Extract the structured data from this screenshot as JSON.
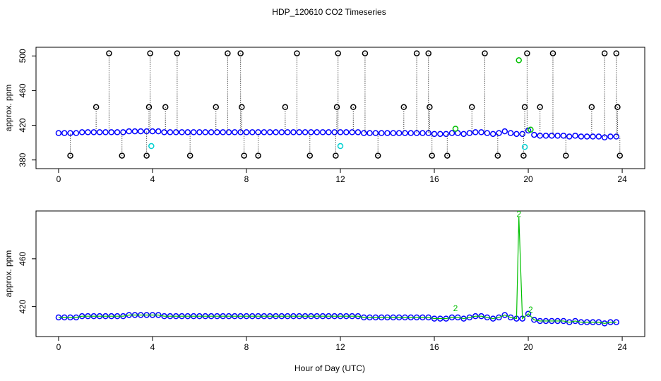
{
  "chart_data": [
    {
      "type": "scatter",
      "title": "HDP_120610  CO2 Timeseries",
      "y_label": "approx. ppm",
      "xlim": [
        -0.96,
        24.96
      ],
      "xticks": [
        0,
        4,
        8,
        12,
        16,
        20,
        24
      ],
      "ylim": [
        370,
        510
      ],
      "yticks": [
        380,
        420,
        460,
        500
      ],
      "series": [
        {
          "color": "#0000ff",
          "mode": "points",
          "x": [
            0,
            0.25,
            0.5,
            0.75,
            1,
            1.25,
            1.5,
            1.75,
            2,
            2.25,
            2.5,
            2.75,
            3,
            3.25,
            3.5,
            3.75,
            4,
            4.25,
            4.5,
            4.75,
            5,
            5.25,
            5.5,
            5.75,
            6,
            6.25,
            6.5,
            6.75,
            7,
            7.25,
            7.5,
            7.75,
            8,
            8.25,
            8.5,
            8.75,
            9,
            9.25,
            9.5,
            9.75,
            10,
            10.25,
            10.5,
            10.75,
            11,
            11.25,
            11.5,
            11.75,
            12,
            12.25,
            12.5,
            12.75,
            13,
            13.25,
            13.5,
            13.75,
            14,
            14.25,
            14.5,
            14.75,
            15,
            15.25,
            15.5,
            15.75,
            16,
            16.25,
            16.5,
            16.75,
            17,
            17.25,
            17.5,
            17.75,
            18,
            18.25,
            18.5,
            18.75,
            19,
            19.25,
            19.5,
            19.75,
            20,
            20.25,
            20.5,
            20.75,
            21,
            21.25,
            21.5,
            21.75,
            22,
            22.25,
            22.5,
            22.75,
            23,
            23.25,
            23.5,
            23.75
          ],
          "values": [
            411,
            411,
            411,
            411,
            412,
            412,
            412,
            412,
            412,
            412,
            412,
            412,
            413,
            413,
            413,
            413,
            413,
            413,
            412,
            412,
            412,
            412,
            412,
            412,
            412,
            412,
            412,
            412,
            412,
            412,
            412,
            412,
            412,
            412,
            412,
            412,
            412,
            412,
            412,
            412,
            412,
            412,
            412,
            412,
            412,
            412,
            412,
            412,
            412,
            412,
            412,
            412,
            411,
            411,
            411,
            411,
            411,
            411,
            411,
            411,
            411,
            411,
            411,
            411,
            410,
            410,
            410,
            411,
            411,
            410,
            411,
            412,
            412,
            411,
            410,
            411,
            413,
            411,
            410,
            410,
            414,
            409,
            408,
            408,
            408,
            408,
            408,
            407,
            408,
            407,
            407,
            407,
            407,
            406,
            407,
            407
          ]
        },
        {
          "color": "#000000",
          "mode": "points",
          "droplines": true,
          "x": [
            0.5,
            1.6,
            2.15,
            2.7,
            3.75,
            3.85,
            3.9,
            4.55,
            5.05,
            5.6,
            6.7,
            7.2,
            7.75,
            7.8,
            7.9,
            8.5,
            9.65,
            10.15,
            10.7,
            11.8,
            11.85,
            11.9,
            12.55,
            13.05,
            13.6,
            14.7,
            15.25,
            15.75,
            15.8,
            15.9,
            16.55,
            17.6,
            18.15,
            18.7,
            19.8,
            19.85,
            19.95,
            20.5,
            21.05,
            21.6,
            22.7,
            23.25,
            23.75,
            23.8,
            23.9
          ],
          "values": [
            385,
            441,
            503,
            385,
            385,
            441,
            503,
            441,
            503,
            385,
            441,
            503,
            503,
            441,
            385,
            385,
            441,
            503,
            385,
            385,
            441,
            503,
            441,
            503,
            385,
            441,
            503,
            503,
            441,
            385,
            385,
            441,
            503,
            385,
            385,
            441,
            503,
            441,
            503,
            385,
            441,
            503,
            503,
            441,
            385
          ]
        },
        {
          "color": "#00d0d0",
          "mode": "points",
          "x": [
            3.95,
            12,
            19.85
          ],
          "values": [
            396,
            396,
            395
          ]
        },
        {
          "color": "#00c000",
          "mode": "points",
          "x": [
            16.9,
            19.6,
            20.1
          ],
          "values": [
            416,
            495,
            415
          ]
        }
      ]
    },
    {
      "type": "scatter",
      "y_label": "approx. ppm",
      "x_label": "Hour of Day (UTC)",
      "xlim": [
        -0.96,
        24.96
      ],
      "xticks": [
        0,
        4,
        8,
        12,
        16,
        20,
        24
      ],
      "ylim": [
        395,
        500
      ],
      "yticks": [
        420,
        460
      ],
      "series": [
        {
          "color": "#0000ff",
          "mode": "points",
          "x": [
            0,
            0.25,
            0.5,
            0.75,
            1,
            1.25,
            1.5,
            1.75,
            2,
            2.25,
            2.5,
            2.75,
            3,
            3.25,
            3.5,
            3.75,
            4,
            4.25,
            4.5,
            4.75,
            5,
            5.25,
            5.5,
            5.75,
            6,
            6.25,
            6.5,
            6.75,
            7,
            7.25,
            7.5,
            7.75,
            8,
            8.25,
            8.5,
            8.75,
            9,
            9.25,
            9.5,
            9.75,
            10,
            10.25,
            10.5,
            10.75,
            11,
            11.25,
            11.5,
            11.75,
            12,
            12.25,
            12.5,
            12.75,
            13,
            13.25,
            13.5,
            13.75,
            14,
            14.25,
            14.5,
            14.75,
            15,
            15.25,
            15.5,
            15.75,
            16,
            16.25,
            16.5,
            16.75,
            17,
            17.25,
            17.5,
            17.75,
            18,
            18.25,
            18.5,
            18.75,
            19,
            19.25,
            19.5,
            19.75,
            20,
            20.25,
            20.5,
            20.75,
            21,
            21.25,
            21.5,
            21.75,
            22,
            22.25,
            22.5,
            22.75,
            23,
            23.25,
            23.5,
            23.75
          ],
          "values": [
            411,
            411,
            411,
            411,
            412,
            412,
            412,
            412,
            412,
            412,
            412,
            412,
            413,
            413,
            413,
            413,
            413,
            413,
            412,
            412,
            412,
            412,
            412,
            412,
            412,
            412,
            412,
            412,
            412,
            412,
            412,
            412,
            412,
            412,
            412,
            412,
            412,
            412,
            412,
            412,
            412,
            412,
            412,
            412,
            412,
            412,
            412,
            412,
            412,
            412,
            412,
            412,
            411,
            411,
            411,
            411,
            411,
            411,
            411,
            411,
            411,
            411,
            411,
            411,
            410,
            410,
            410,
            411,
            411,
            410,
            411,
            412,
            412,
            411,
            410,
            411,
            413,
            411,
            410,
            410,
            414,
            409,
            408,
            408,
            408,
            408,
            408,
            407,
            408,
            407,
            407,
            407,
            407,
            406,
            407,
            407
          ]
        },
        {
          "color": "#00c000",
          "mode": "line",
          "x": [
            0,
            0.25,
            0.5,
            0.75,
            1,
            1.25,
            1.5,
            1.75,
            2,
            2.25,
            2.5,
            2.75,
            3,
            3.25,
            3.5,
            3.75,
            4,
            4.25,
            4.5,
            4.75,
            5,
            5.25,
            5.5,
            5.75,
            6,
            6.25,
            6.5,
            6.75,
            7,
            7.25,
            7.5,
            7.75,
            8,
            8.25,
            8.5,
            8.75,
            9,
            9.25,
            9.5,
            9.75,
            10,
            10.25,
            10.5,
            10.75,
            11,
            11.25,
            11.5,
            11.75,
            12,
            12.25,
            12.5,
            12.75,
            13,
            13.25,
            13.5,
            13.75,
            14,
            14.25,
            14.5,
            14.75,
            15,
            15.25,
            15.5,
            15.75,
            16,
            16.25,
            16.5,
            16.75,
            17,
            17.25,
            17.5,
            17.75,
            18,
            18.25,
            18.5,
            18.75,
            19,
            19.25,
            19.5,
            19.6,
            19.75,
            20,
            20.25,
            20.5,
            20.75,
            21,
            21.25,
            21.5,
            21.75,
            22,
            22.25,
            22.5,
            22.75,
            23,
            23.25,
            23.5,
            23.75
          ],
          "values": [
            411,
            411,
            411,
            411,
            412,
            412,
            412,
            412,
            412,
            412,
            412,
            412,
            413,
            413,
            413,
            413,
            413,
            413,
            412,
            412,
            412,
            412,
            412,
            412,
            412,
            412,
            412,
            412,
            412,
            412,
            412,
            412,
            412,
            412,
            412,
            412,
            412,
            412,
            412,
            412,
            412,
            412,
            412,
            412,
            412,
            412,
            412,
            412,
            412,
            412,
            412,
            412,
            411,
            411,
            411,
            411,
            411,
            411,
            411,
            411,
            411,
            411,
            411,
            411,
            410,
            410,
            410,
            411,
            411,
            410,
            411,
            412,
            412,
            411,
            410,
            411,
            413,
            411,
            410,
            495,
            410,
            414,
            409,
            408,
            408,
            408,
            408,
            408,
            407,
            408,
            407,
            407,
            407,
            407,
            406,
            407,
            407
          ]
        }
      ],
      "annotations": [
        {
          "x": 16.9,
          "y": 418,
          "label": "2",
          "color": "#00c000"
        },
        {
          "x": 19.6,
          "y": 497,
          "label": "2",
          "color": "#00c000"
        },
        {
          "x": 20.1,
          "y": 417,
          "label": "2",
          "color": "#00c000"
        }
      ]
    }
  ]
}
